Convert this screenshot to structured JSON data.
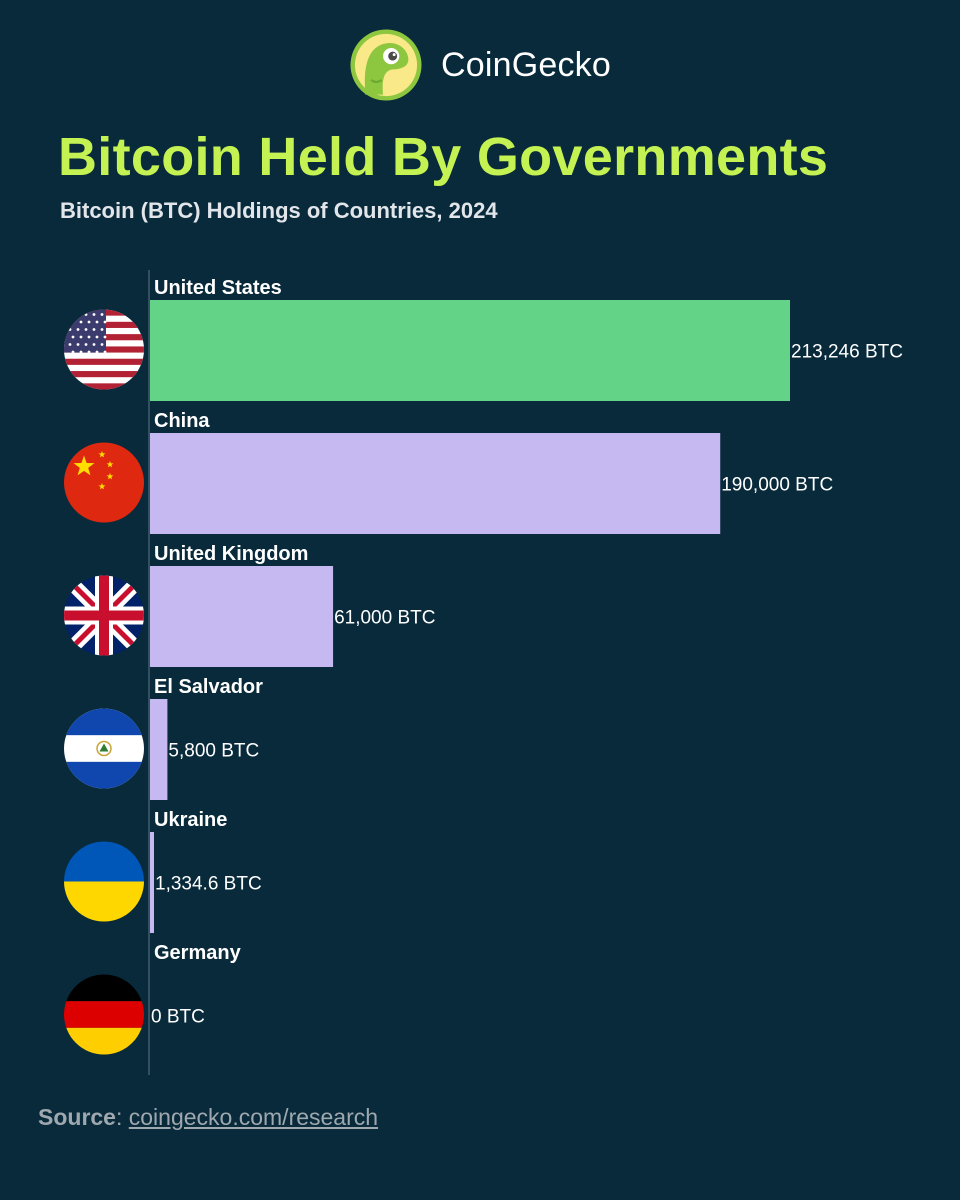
{
  "brand": {
    "name": "CoinGecko",
    "logo_icon": "gecko-logo-icon"
  },
  "header": {
    "title": "Bitcoin Held By Governments",
    "subtitle": "Bitcoin (BTC) Holdings of Countries, 2024"
  },
  "colors": {
    "background": "#082a3b",
    "title": "#c4f252",
    "bar_highlight": "#63d487",
    "bar_default": "#c6b8f0",
    "axis": "#5b7584"
  },
  "chart_data": {
    "type": "bar",
    "orientation": "horizontal",
    "title": "Bitcoin Held By Governments",
    "subtitle": "Bitcoin (BTC) Holdings of Countries, 2024",
    "xlabel": "",
    "ylabel": "",
    "xlim": [
      0,
      213246
    ],
    "unit": "BTC",
    "categories": [
      "United States",
      "China",
      "United Kingdom",
      "El Salvador",
      "Ukraine",
      "Germany"
    ],
    "values": [
      213246,
      190000,
      61000,
      5800,
      1334.6,
      0
    ],
    "value_labels": [
      "213,246 BTC",
      "190,000 BTC",
      "61,000 BTC",
      "5,800 BTC",
      "1,334.6 BTC",
      "0 BTC"
    ],
    "flags": [
      "us-flag-icon",
      "china-flag-icon",
      "uk-flag-icon",
      "el-salvador-flag-icon",
      "ukraine-flag-icon",
      "germany-flag-icon"
    ],
    "highlight_index": 0,
    "grid": false,
    "legend": "none"
  },
  "source": {
    "label": "Source",
    "separator": ": ",
    "link": "coingecko.com/research"
  }
}
